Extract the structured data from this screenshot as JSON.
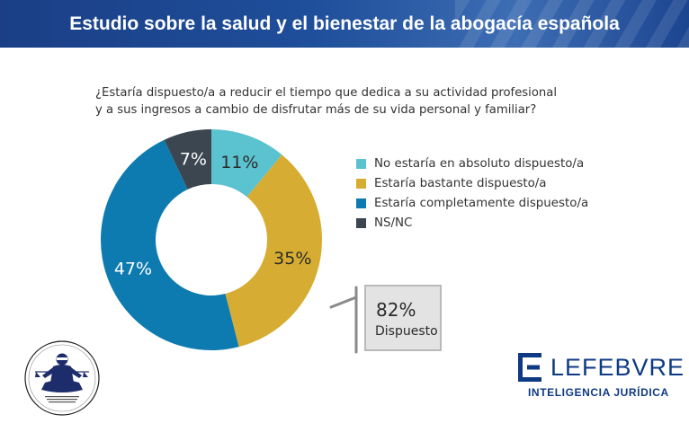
{
  "header": {
    "title": "Estudio sobre la salud y el bienestar de la abogacía española"
  },
  "chart_data": {
    "type": "pie",
    "donut": true,
    "title_lines": [
      "¿Estaría dispuesto/a a reducir el tiempo que dedica a su actividad profesional",
      "y a sus ingresos a cambio de disfrutar más de su vida personal y familiar?"
    ],
    "unit": "%",
    "legend_position": "right",
    "slices": [
      {
        "label": "No estaría en absoluto dispuesto/a",
        "value": 11,
        "display": "11%",
        "color": "#5bc3cf"
      },
      {
        "label": "Estaría bastante dispuesto/a",
        "value": 35,
        "display": "35%",
        "color": "#d6ad32"
      },
      {
        "label": "Estaría completamente dispuesto/a",
        "value": 47,
        "display": "47%",
        "color": "#0e7bb0"
      },
      {
        "label": "NS/NC",
        "value": 7,
        "display": "7%",
        "color": "#3b4651"
      }
    ],
    "summary": {
      "value": "82%",
      "label": "Dispuesto"
    }
  },
  "logos": {
    "lefebvre_name": "LEFEBVRE",
    "lefebvre_tagline": "INTELIGENCIA JURÍDICA",
    "lefebvre_color": "#0e3a84"
  },
  "icons": {
    "emblem": "meditating-figure-scales-icon",
    "lefebvre_mark": "lefebvre-e-mark-icon"
  }
}
